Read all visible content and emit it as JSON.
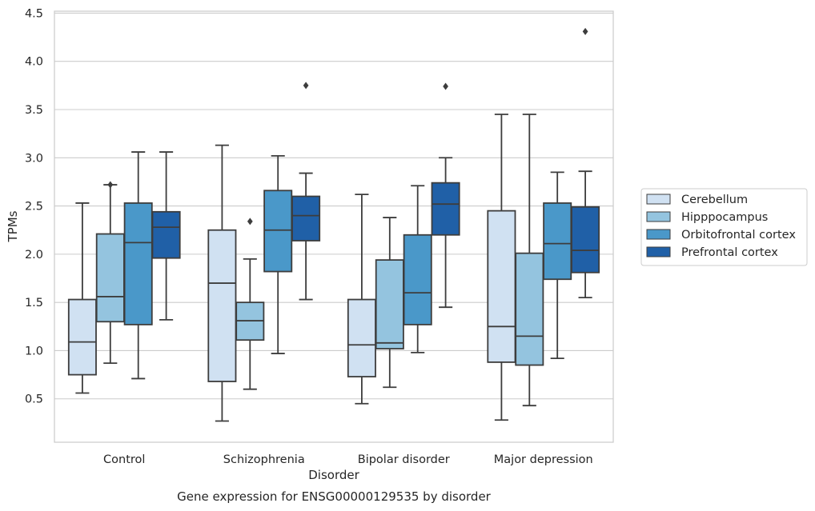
{
  "chart_data": {
    "type": "box",
    "caption": "Gene expression for ENSG00000129535 by disorder",
    "xlabel": "Disorder",
    "ylabel": "TPMs",
    "ylim": [
      0.05,
      4.52
    ],
    "yticks": [
      0.5,
      1.0,
      1.5,
      2.0,
      2.5,
      3.0,
      3.5,
      4.0,
      4.5
    ],
    "ytick_labels": [
      "0.5",
      "1.0",
      "1.5",
      "2.0",
      "2.5",
      "3.0",
      "3.5",
      "4.0",
      "4.5"
    ],
    "grid": true,
    "legend_position": "right",
    "categories": [
      "Control",
      "Schizophrenia",
      "Bipolar disorder",
      "Major depression"
    ],
    "series": [
      {
        "name": "Cerebellum",
        "color": "#d0e1f2",
        "boxes": [
          {
            "whislo": 0.56,
            "q1": 0.75,
            "med": 1.09,
            "q3": 1.53,
            "whishi": 2.53,
            "fliers": []
          },
          {
            "whislo": 0.27,
            "q1": 0.68,
            "med": 1.7,
            "q3": 2.25,
            "whishi": 3.13,
            "fliers": []
          },
          {
            "whislo": 0.45,
            "q1": 0.73,
            "med": 1.06,
            "q3": 1.53,
            "whishi": 2.62,
            "fliers": []
          },
          {
            "whislo": 0.28,
            "q1": 0.88,
            "med": 1.25,
            "q3": 2.45,
            "whishi": 3.45,
            "fliers": []
          }
        ]
      },
      {
        "name": "Hipppocampus",
        "color": "#94c4df",
        "boxes": [
          {
            "whislo": 0.87,
            "q1": 1.3,
            "med": 1.56,
            "q3": 2.21,
            "whishi": 2.72,
            "fliers": [
              2.72
            ]
          },
          {
            "whislo": 0.6,
            "q1": 1.11,
            "med": 1.31,
            "q3": 1.5,
            "whishi": 1.95,
            "fliers": [
              2.34
            ]
          },
          {
            "whislo": 0.62,
            "q1": 1.02,
            "med": 1.08,
            "q3": 1.94,
            "whishi": 2.38,
            "fliers": []
          },
          {
            "whislo": 0.43,
            "q1": 0.85,
            "med": 1.15,
            "q3": 2.01,
            "whishi": 3.45,
            "fliers": []
          }
        ]
      },
      {
        "name": "Orbitofrontal cortex",
        "color": "#4a98c9",
        "boxes": [
          {
            "whislo": 0.71,
            "q1": 1.27,
            "med": 2.12,
            "q3": 2.53,
            "whishi": 3.06,
            "fliers": []
          },
          {
            "whislo": 0.97,
            "q1": 1.82,
            "med": 2.25,
            "q3": 2.66,
            "whishi": 3.02,
            "fliers": []
          },
          {
            "whislo": 0.98,
            "q1": 1.27,
            "med": 1.6,
            "q3": 2.2,
            "whishi": 2.71,
            "fliers": []
          },
          {
            "whislo": 0.92,
            "q1": 1.74,
            "med": 2.11,
            "q3": 2.53,
            "whishi": 2.85,
            "fliers": []
          }
        ]
      },
      {
        "name": "Prefrontal cortex",
        "color": "#2060a7",
        "boxes": [
          {
            "whislo": 1.32,
            "q1": 1.96,
            "med": 2.28,
            "q3": 2.44,
            "whishi": 3.06,
            "fliers": []
          },
          {
            "whislo": 1.53,
            "q1": 2.14,
            "med": 2.4,
            "q3": 2.6,
            "whishi": 2.84,
            "fliers": [
              3.75
            ]
          },
          {
            "whislo": 1.45,
            "q1": 2.2,
            "med": 2.52,
            "q3": 2.74,
            "whishi": 3.0,
            "fliers": [
              3.74
            ]
          },
          {
            "whislo": 1.55,
            "q1": 1.81,
            "med": 2.04,
            "q3": 2.49,
            "whishi": 2.86,
            "fliers": [
              4.31
            ]
          }
        ]
      }
    ]
  }
}
